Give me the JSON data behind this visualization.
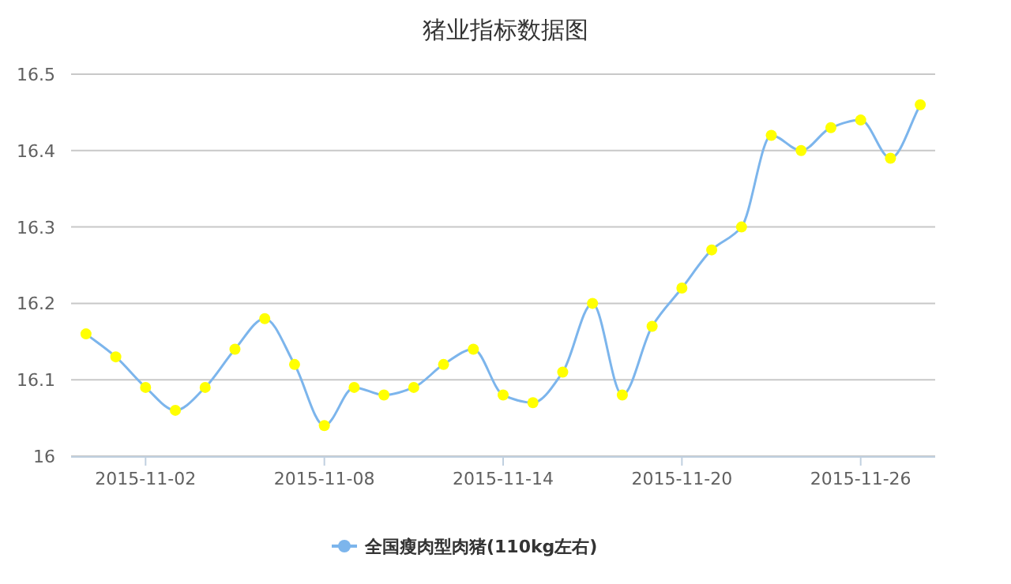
{
  "chart_data": {
    "type": "line",
    "title": "猪业指标数据图",
    "categories": [
      null,
      null,
      "2015-11-02",
      null,
      null,
      null,
      null,
      null,
      "2015-11-08",
      null,
      null,
      null,
      null,
      null,
      "2015-11-14",
      null,
      null,
      null,
      null,
      null,
      "2015-11-20",
      null,
      null,
      null,
      null,
      null,
      "2015-11-26",
      null,
      null
    ],
    "series": [
      {
        "name": "全国瘦肉型肉猪(110kg左右)",
        "color": "#7cb5ec",
        "values": [
          16.16,
          16.13,
          16.09,
          16.06,
          16.09,
          16.14,
          16.18,
          16.12,
          16.04,
          16.09,
          16.08,
          16.09,
          16.12,
          16.14,
          16.08,
          16.07,
          16.11,
          16.2,
          16.08,
          16.17,
          16.22,
          16.27,
          16.3,
          16.42,
          16.4,
          16.43,
          16.44,
          16.39,
          16.46
        ]
      }
    ],
    "ylim": [
      16,
      16.5
    ],
    "yticks": [
      16,
      16.1,
      16.2,
      16.3,
      16.4,
      16.5
    ],
    "grid": "y",
    "legend": "bottom",
    "marker": "circle"
  }
}
